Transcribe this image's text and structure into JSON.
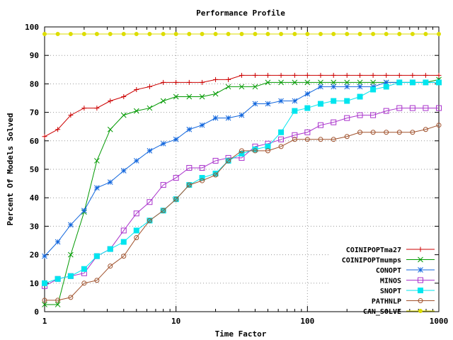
{
  "chart_data": {
    "type": "line",
    "title": "Performance Profile",
    "xlabel": "Time Factor",
    "ylabel": "Percent Of Models Solved",
    "xscale": "log",
    "xlim": [
      1,
      1000
    ],
    "ylim": [
      0,
      100
    ],
    "xticks": [
      1,
      10,
      100,
      1000
    ],
    "xtick_labels": [
      "1",
      "10",
      "100",
      "1000"
    ],
    "yticks": [
      0,
      10,
      20,
      30,
      40,
      50,
      60,
      70,
      80,
      90,
      100
    ],
    "ytick_labels": [
      "0",
      "10",
      "20",
      "30",
      "40",
      "50",
      "60",
      "70",
      "80",
      "90",
      "100"
    ],
    "grid": true,
    "legend_position": "bottom-right",
    "series": [
      {
        "name": "COINIPOPTma27",
        "color": "#cc0000",
        "marker": "plus",
        "x": [
          1,
          1.26,
          1.58,
          2,
          2.5,
          3.16,
          4,
          5,
          6.3,
          8,
          10,
          12.6,
          15.8,
          20,
          25,
          31.6,
          40,
          50,
          63,
          80,
          100,
          126,
          158,
          200,
          251,
          316,
          398,
          501,
          631,
          794,
          1000
        ],
        "y": [
          61.5,
          64,
          69,
          71.5,
          71.5,
          74,
          75.5,
          78,
          79,
          80.5,
          80.5,
          80.5,
          80.5,
          81.5,
          81.5,
          83,
          83,
          83,
          83,
          83,
          83,
          83,
          83,
          83,
          83,
          83,
          83,
          83,
          83,
          83,
          83
        ]
      },
      {
        "name": "COINIPOPTmumps",
        "color": "#009900",
        "marker": "cross",
        "x": [
          1,
          1.26,
          1.58,
          2,
          2.5,
          3.16,
          4,
          5,
          6.3,
          8,
          10,
          12.6,
          15.8,
          20,
          25,
          31.6,
          40,
          50,
          63,
          80,
          100,
          126,
          158,
          200,
          251,
          316,
          398,
          501,
          631,
          794,
          1000
        ],
        "y": [
          2.5,
          2.5,
          20,
          35,
          53,
          64,
          69,
          70.5,
          71.5,
          74,
          75.5,
          75.5,
          75.5,
          76.5,
          79,
          79,
          79,
          80.5,
          80.5,
          80.5,
          80.5,
          80.5,
          80.5,
          80.5,
          80.5,
          80.5,
          80.5,
          80.5,
          80.5,
          80.5,
          81.5
        ]
      },
      {
        "name": "CONOPT",
        "color": "#1166dd",
        "marker": "star",
        "x": [
          1,
          1.26,
          1.58,
          2,
          2.5,
          3.16,
          4,
          5,
          6.3,
          8,
          10,
          12.6,
          15.8,
          20,
          25,
          31.6,
          40,
          50,
          63,
          80,
          100,
          126,
          158,
          200,
          251,
          316,
          398,
          501,
          631,
          794,
          1000
        ],
        "y": [
          19.5,
          24.5,
          30.5,
          35.5,
          43.5,
          45.5,
          49.5,
          53,
          56.5,
          59,
          60.5,
          64,
          65.5,
          68,
          68,
          69,
          73,
          73,
          74,
          74,
          76.5,
          79,
          79,
          79,
          79,
          79,
          80.5,
          80.5,
          80.5,
          80.5,
          80.5
        ]
      },
      {
        "name": "MINOS",
        "color": "#aa33cc",
        "marker": "square-open",
        "x": [
          1,
          1.26,
          1.58,
          2,
          2.5,
          3.16,
          4,
          5,
          6.3,
          8,
          10,
          12.6,
          15.8,
          20,
          25,
          31.6,
          40,
          50,
          63,
          80,
          100,
          126,
          158,
          200,
          251,
          316,
          398,
          501,
          631,
          794,
          1000
        ],
        "y": [
          9,
          11.5,
          12.5,
          13.5,
          19.5,
          22,
          28.5,
          34.5,
          38.5,
          44.5,
          47,
          50.5,
          50.5,
          53,
          54,
          54,
          58,
          59,
          60.5,
          62,
          63,
          65.5,
          66.5,
          68,
          69,
          69,
          70.5,
          71.5,
          71.5,
          71.5,
          71.5
        ]
      },
      {
        "name": "SNOPT",
        "color": "#00e5ee",
        "marker": "square-filled",
        "x": [
          1,
          1.26,
          1.58,
          2,
          2.5,
          3.16,
          4,
          5,
          6.3,
          8,
          10,
          12.6,
          15.8,
          20,
          25,
          31.6,
          40,
          50,
          63,
          80,
          100,
          126,
          158,
          200,
          251,
          316,
          398,
          501,
          631,
          794,
          1000
        ],
        "y": [
          10,
          11.5,
          12.5,
          15,
          19.5,
          22,
          24.5,
          28.5,
          32,
          35.5,
          39.5,
          44.5,
          47,
          48.5,
          53,
          55.5,
          57,
          58,
          63,
          70.5,
          71.5,
          73,
          74,
          74,
          75.5,
          78,
          79,
          80.5,
          80.5,
          80.5,
          80.5
        ]
      },
      {
        "name": "PATHNLP",
        "color": "#a0522d",
        "marker": "circle",
        "x": [
          1,
          1.26,
          1.58,
          2,
          2.5,
          3.16,
          4,
          5,
          6.3,
          8,
          10,
          12.6,
          15.8,
          20,
          25,
          31.6,
          40,
          50,
          63,
          80,
          100,
          126,
          158,
          200,
          251,
          316,
          398,
          501,
          631,
          794,
          1000
        ],
        "y": [
          4,
          4,
          5,
          10,
          11,
          16,
          19.5,
          26,
          32,
          35.5,
          39.5,
          44.5,
          46,
          48,
          53,
          56.5,
          56.5,
          56.5,
          58,
          60.5,
          60.5,
          60.5,
          60.5,
          61.5,
          63,
          63,
          63,
          63,
          63,
          64,
          65.5
        ]
      },
      {
        "name": "CAN_SOLVE",
        "color": "#dddd00",
        "marker": "dot",
        "x": [
          1,
          1.26,
          1.58,
          2,
          2.5,
          3.16,
          4,
          5,
          6.3,
          8,
          10,
          12.6,
          15.8,
          20,
          25,
          31.6,
          40,
          50,
          63,
          80,
          100,
          126,
          158,
          200,
          251,
          316,
          398,
          501,
          631,
          794,
          1000
        ],
        "y": [
          97.5,
          97.5,
          97.5,
          97.5,
          97.5,
          97.5,
          97.5,
          97.5,
          97.5,
          97.5,
          97.5,
          97.5,
          97.5,
          97.5,
          97.5,
          97.5,
          97.5,
          97.5,
          97.5,
          97.5,
          97.5,
          97.5,
          97.5,
          97.5,
          97.5,
          97.5,
          97.5,
          97.5,
          97.5,
          97.5,
          97.5
        ]
      }
    ]
  }
}
